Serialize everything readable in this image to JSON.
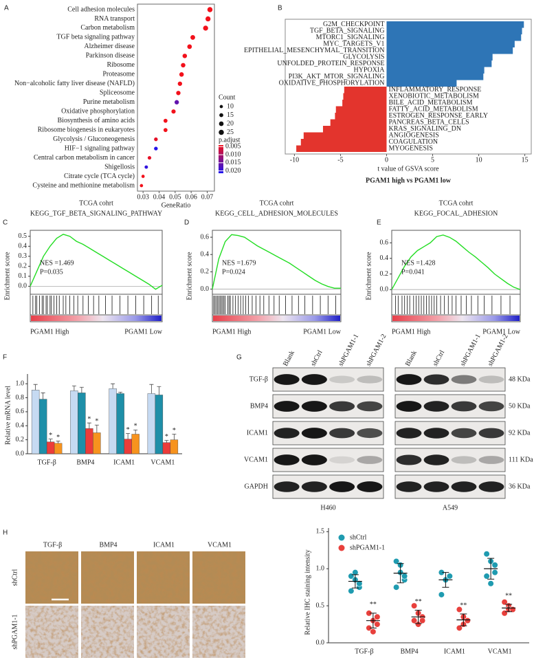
{
  "chart_data": [
    {
      "type": "dot",
      "panel": "A",
      "categories": [
        "Cell adhesion molecules",
        "RNA transport",
        "Carbon metabolism",
        "TGF beta signaling pathway",
        "Alzheimer disease",
        "Parkinson disease",
        "Ribosome",
        "Proteasome",
        "Non−alcoholic fatty liver disease (NAFLD)",
        "Spliceosome",
        "Purine metabolism",
        "Oxidative phosphorylation",
        "Biosynthesis of amino acids",
        "Ribosome biogenesis in eukaryotes",
        "Glycolysis / Gluconeogenesis",
        "HIF−1 signaling pathway",
        "Central carbon metabolism in cancer",
        "Shigellosis",
        "Citrate cycle (TCA cycle)",
        "Cysteine and methionine metabolism"
      ],
      "values": [
        0.0717,
        0.0705,
        0.069,
        0.061,
        0.059,
        0.056,
        0.055,
        0.054,
        0.053,
        0.052,
        0.051,
        0.049,
        0.044,
        0.044,
        0.038,
        0.038,
        0.034,
        0.032,
        0.03,
        0.029
      ],
      "counts": [
        25,
        24,
        24,
        21,
        20,
        19,
        19,
        19,
        18,
        18,
        18,
        17,
        15,
        15,
        13,
        13,
        12,
        11,
        10,
        10
      ],
      "p_adjust": [
        0.004,
        0.004,
        0.004,
        0.004,
        0.004,
        0.004,
        0.004,
        0.004,
        0.004,
        0.004,
        0.016,
        0.004,
        0.004,
        0.004,
        0.005,
        0.021,
        0.005,
        0.02,
        0.004,
        0.004
      ],
      "xlabel": "GeneRatio",
      "xlim": [
        0.0265,
        0.0745
      ],
      "xticks": [
        0.03,
        0.04,
        0.05,
        0.06,
        0.07
      ],
      "size_title": "Count",
      "size_ticks": [
        10,
        15,
        20,
        25
      ],
      "color_title": "p.adjust",
      "clim": [
        0.004,
        0.0215
      ],
      "colors": [
        "#f2111b",
        "#1f14f0"
      ],
      "color_ticks": [
        0.005,
        {
          "value": 0.01,
          "label": "0.010"
        },
        0.015,
        {
          "value": 0.02,
          "label": "0.020"
        }
      ]
    },
    {
      "type": "bar",
      "panel": "B",
      "orientation": "horizontal",
      "categories": [
        "G2M_CHECKPOINT",
        "TGF_BETA_SIGNALING",
        "MTORC1_SIGNALING",
        "MYC_TARGETS_V1",
        "EPITHELIAL_MESENCHYMAL_TRANSITION",
        "GLYCOLYSIS",
        "UNFOLDED_PROTEIN_RESPONSE",
        "HYPOXIA",
        "PI3K_AKT_MTOR_SIGNALING",
        "OXIDATIVE_PHOSPHORYLATION",
        "INFLAMMATORY_RESPONSE",
        "XENOBIOTIC_METABOLISM",
        "BILE_ACID_METABOLISM",
        "FATTY_ACID_METABOLISM",
        "ESTROGEN_RESPONSE_EARLY",
        "PANCREAS_BETA_CELLS",
        "KRAS_SIGNALING_DN",
        "ANGIOGENESIS",
        "COAGULATION",
        "MYOGENESIS"
      ],
      "values": [
        14.9,
        14.7,
        14.6,
        13.9,
        13.7,
        11.5,
        11.4,
        10.6,
        10.5,
        7.6,
        -4.6,
        -4.7,
        -4.8,
        -5.5,
        -5.6,
        -6.1,
        -6.9,
        -9.0,
        -9.3,
        -9.8
      ],
      "positive_color": "#2e75b6",
      "negative_color": "#e3342d",
      "xlabel": "t value of GSVA score",
      "subtitle": "PGAM1 high vs PGAM1 low",
      "xlim": [
        -11.0,
        15.7
      ],
      "xticks": [
        -10,
        -5,
        0,
        5,
        10,
        15
      ]
    },
    {
      "type": "line",
      "panel": "C",
      "title": "TCGA cohrt",
      "subtitle": "KEGG_TGF_BETA_SIGNALING_PATHWAY",
      "ylabel": "Enrichment score",
      "annotations": [
        "NES =1.469",
        "P=0.035"
      ],
      "x_end_labels": [
        "PGAM1 High",
        "PGAM1 Low"
      ],
      "x": [
        0,
        5,
        10,
        15,
        20,
        25,
        30,
        35,
        40,
        45,
        50,
        55,
        60,
        65,
        70,
        75,
        80,
        85,
        90,
        95,
        100
      ],
      "values": [
        0,
        0.15,
        0.3,
        0.4,
        0.48,
        0.52,
        0.5,
        0.45,
        0.42,
        0.38,
        0.34,
        0.3,
        0.26,
        0.22,
        0.18,
        0.14,
        0.1,
        0.06,
        0.02,
        -0.03,
        0.01
      ],
      "hits": [
        2,
        4,
        5,
        7,
        9,
        10,
        12,
        13,
        15,
        16,
        18,
        20,
        22,
        25,
        27,
        30,
        33,
        36,
        40,
        44,
        48,
        52,
        57,
        62,
        68,
        74,
        80,
        86,
        92,
        97
      ],
      "color": "#22dd22",
      "xlim": [
        0,
        100
      ],
      "ylim": [
        -0.08,
        0.56
      ],
      "yticks": [
        {
          "value": 0,
          "label": "0.0"
        },
        0.1,
        0.2,
        0.3,
        0.4,
        0.5
      ]
    },
    {
      "type": "line",
      "panel": "D",
      "title": "TCGA cohrt",
      "subtitle": "KEGG_CELL_ADHESION_MOLECULES",
      "ylabel": "Enrichment score",
      "annotations": [
        "NES =1.679",
        "P=0.024"
      ],
      "x_end_labels": [
        "PGAM1 High",
        "PGAM1 Low"
      ],
      "x": [
        0,
        5,
        10,
        15,
        20,
        25,
        30,
        35,
        40,
        45,
        50,
        55,
        60,
        65,
        70,
        75,
        80,
        85,
        90,
        95,
        100
      ],
      "values": [
        0,
        0.35,
        0.55,
        0.63,
        0.62,
        0.6,
        0.55,
        0.5,
        0.46,
        0.42,
        0.38,
        0.34,
        0.3,
        0.25,
        0.2,
        0.15,
        0.1,
        0.06,
        0.03,
        0.01,
        0.01
      ],
      "hits": [
        1,
        2,
        3,
        4,
        5,
        6,
        7,
        8,
        9,
        10,
        12,
        13,
        14,
        16,
        18,
        20,
        22,
        24,
        26,
        28,
        31,
        34,
        37,
        40,
        44,
        48,
        52,
        57,
        62,
        67,
        72,
        78,
        84,
        90,
        96
      ],
      "color": "#22dd22",
      "xlim": [
        0,
        100
      ],
      "ylim": [
        -0.06,
        0.68
      ],
      "yticks": [
        {
          "value": 0,
          "label": "0.0"
        },
        0.2,
        0.4,
        0.6
      ]
    },
    {
      "type": "line",
      "panel": "E",
      "title": "TCGA cohrt",
      "subtitle": "KEGG_FOCAL_ADHESION",
      "ylabel": "Enrichment score",
      "annotations": [
        "NES =1.428",
        "P=0.041"
      ],
      "x_end_labels": [
        "PGAM1 High",
        "PGAM1 Low"
      ],
      "x": [
        0,
        5,
        10,
        15,
        20,
        25,
        30,
        35,
        40,
        45,
        50,
        55,
        60,
        65,
        70,
        75,
        80,
        85,
        90,
        95,
        100
      ],
      "values": [
        0,
        0.15,
        0.3,
        0.42,
        0.5,
        0.55,
        0.6,
        0.68,
        0.7,
        0.67,
        0.62,
        0.55,
        0.48,
        0.42,
        0.35,
        0.28,
        0.2,
        0.14,
        0.08,
        0.03,
        0.0
      ],
      "hits": [
        3,
        5,
        8,
        10,
        12,
        14,
        17,
        19,
        21,
        23,
        25,
        27,
        29,
        31,
        33,
        35,
        38,
        41,
        44,
        47,
        50,
        54,
        58,
        62,
        67,
        72,
        78,
        85,
        92
      ],
      "color": "#22dd22",
      "xlim": [
        0,
        100
      ],
      "ylim": [
        -0.06,
        0.76
      ],
      "yticks": [
        {
          "value": 0,
          "label": "0.0"
        },
        0.2,
        0.4,
        0.6
      ]
    },
    {
      "type": "bar",
      "panel": "F",
      "ylabel": "Relative mRNA level",
      "categories": [
        "TGF-β",
        "BMP4",
        "ICAM1",
        "VCAM1"
      ],
      "series": [
        {
          "color": "#c6daf2",
          "values": [
            0.91,
            0.9,
            0.93,
            0.86
          ],
          "errors": [
            0.08,
            0.07,
            0.07,
            0.13
          ]
        },
        {
          "color": "#1e8fa8",
          "values": [
            0.78,
            0.87,
            0.86,
            0.84
          ],
          "errors": [
            0.09,
            0.08,
            0.02,
            0.12
          ]
        },
        {
          "color": "#ec3c3a",
          "values": [
            0.17,
            0.36,
            0.21,
            0.16
          ],
          "errors": [
            0.04,
            0.08,
            0.08,
            0.03
          ],
          "annotation": "*"
        },
        {
          "color": "#f7931e",
          "values": [
            0.15,
            0.3,
            0.28,
            0.2
          ],
          "errors": [
            0.03,
            0.11,
            0.06,
            0.08
          ],
          "annotation": "*"
        }
      ],
      "ylim": [
        0,
        1.1
      ],
      "yticks": [
        {
          "value": 0,
          "label": "0.0"
        },
        0.2,
        0.4,
        0.6,
        0.8,
        {
          "value": 1,
          "label": "1.0"
        }
      ]
    },
    {
      "type": "strip",
      "ylabel": "Relative IHC staining intensity",
      "categories": [
        "TGF-β",
        "BMP4",
        "ICAM1",
        "VCAM1"
      ],
      "series": [
        {
          "name": "shCtrl",
          "color": "#1f9bb0",
          "values": [
            [
              0.9,
              0.85,
              0.75,
              0.7,
              0.95,
              0.8
            ],
            [
              1.1,
              1.05,
              0.85,
              0.75,
              0.95,
              0.9
            ],
            [
              0.95,
              0.85,
              0.9,
              0.65,
              0.85,
              0.9
            ],
            [
              1.2,
              1.1,
              0.95,
              0.9,
              0.8,
              1.05
            ]
          ],
          "means": [
            0.83,
            0.94,
            0.85,
            1.0
          ],
          "sds": [
            0.09,
            0.13,
            0.1,
            0.14
          ]
        },
        {
          "name": "shPGAM1-1",
          "color": "#e8403c",
          "annotation": "**",
          "values": [
            [
              0.4,
              0.3,
              0.25,
              0.2,
              0.15,
              0.35
            ],
            [
              0.5,
              0.4,
              0.35,
              0.3,
              0.25,
              0.3
            ],
            [
              0.45,
              0.35,
              0.3,
              0.2,
              0.25,
              0.3
            ],
            [
              0.55,
              0.5,
              0.45,
              0.4,
              0.45,
              0.45
            ]
          ],
          "means": [
            0.3,
            0.35,
            0.31,
            0.47
          ],
          "sds": [
            0.1,
            0.09,
            0.08,
            0.05
          ]
        }
      ],
      "ylim": [
        0,
        1.55
      ],
      "yticks": [
        {
          "value": 0,
          "label": "0.0"
        },
        0.5,
        {
          "value": 1,
          "label": "1.0"
        },
        1.5
      ]
    }
  ],
  "western_blot": {
    "panel": "G",
    "lanes": [
      "Blank",
      "shCtrl",
      "shPGAM1-1",
      "shPGAM1-2"
    ],
    "proteins": [
      "TGF-β",
      "BMP4",
      "ICAM1",
      "VCAM1",
      "GAPDH"
    ],
    "sizes": [
      "48 KDa",
      "50 KDa",
      "92 KDa",
      "111 KDa",
      "36 KDa"
    ],
    "cell_lines": [
      "H460",
      "A549"
    ],
    "bands": [
      [
        [
          0.95,
          0.95,
          0.15,
          0.2
        ],
        [
          0.95,
          0.95,
          0.8,
          0.75
        ],
        [
          0.9,
          0.95,
          0.8,
          0.7
        ],
        [
          0.95,
          0.95,
          0.1,
          0.3
        ],
        [
          0.9,
          0.9,
          0.95,
          0.95
        ]
      ],
      [
        [
          0.95,
          0.85,
          0.5,
          0.2
        ],
        [
          0.95,
          0.9,
          0.8,
          0.75
        ],
        [
          0.9,
          0.9,
          0.75,
          0.8
        ],
        [
          0.85,
          0.9,
          0.2,
          0.3
        ],
        [
          0.9,
          0.9,
          0.9,
          0.9
        ]
      ]
    ]
  },
  "ihc": {
    "panel": "H",
    "markers": [
      "TGF-β",
      "BMP4",
      "ICAM1",
      "VCAM1"
    ],
    "groups": [
      "shCtrl",
      "shPGAM1-1"
    ]
  }
}
